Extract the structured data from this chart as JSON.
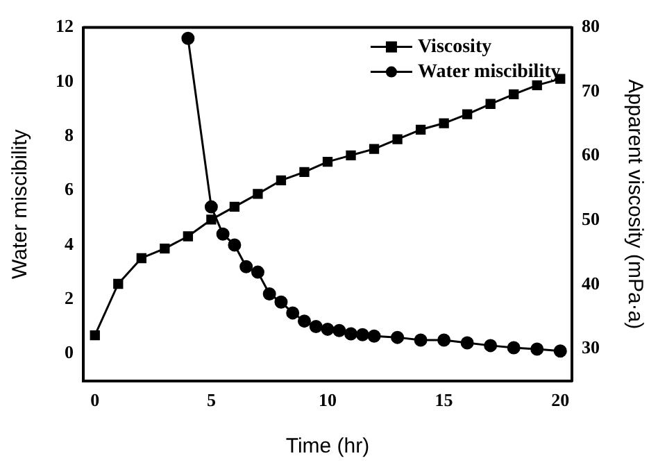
{
  "chart_data": {
    "type": "line",
    "xlabel": "Time (hr)",
    "ylabel": "Water miscibility",
    "y2label": "Apparent viscosity (mPa·a)",
    "xlim": [
      -0.5,
      20.5
    ],
    "xticks": [
      0,
      5,
      10,
      15,
      20
    ],
    "ylim": [
      -1,
      12
    ],
    "yticks": [
      0,
      2,
      4,
      6,
      8,
      10,
      12
    ],
    "y2lim": [
      25,
      80
    ],
    "y2ticks": [
      30,
      40,
      50,
      60,
      70,
      80
    ],
    "grid": false,
    "legend": "top right",
    "series": [
      {
        "name": "Viscosity",
        "color": "#000000",
        "marker": "square",
        "axis": "y2",
        "x": [
          0,
          1,
          2,
          3,
          4,
          5,
          6,
          7,
          8,
          9,
          10,
          11,
          12,
          13,
          14,
          15,
          16,
          17,
          18,
          19,
          20
        ],
        "values": [
          32.1,
          40.1,
          44.1,
          45.6,
          47.5,
          50.1,
          52.1,
          54.1,
          56.2,
          57.5,
          59.1,
          60.1,
          61.1,
          62.6,
          64.1,
          65.1,
          66.5,
          68.1,
          69.6,
          71.0,
          72.0
        ]
      },
      {
        "name": "Water miscibility",
        "color": "#000000",
        "marker": "circle",
        "x": [
          4,
          5,
          5.5,
          6,
          6.5,
          7,
          7.5,
          8,
          8.5,
          9,
          9.5,
          10,
          10.5,
          11,
          11.5,
          12,
          13,
          14,
          15,
          16,
          17,
          18,
          19,
          20
        ],
        "values": [
          11.6,
          5.4,
          4.4,
          4.0,
          3.2,
          3.0,
          2.2,
          1.9,
          1.5,
          1.2,
          1.0,
          0.9,
          0.85,
          0.73,
          0.7,
          0.65,
          0.6,
          0.5,
          0.5,
          0.4,
          0.3,
          0.22,
          0.17,
          0.1
        ]
      }
    ]
  }
}
